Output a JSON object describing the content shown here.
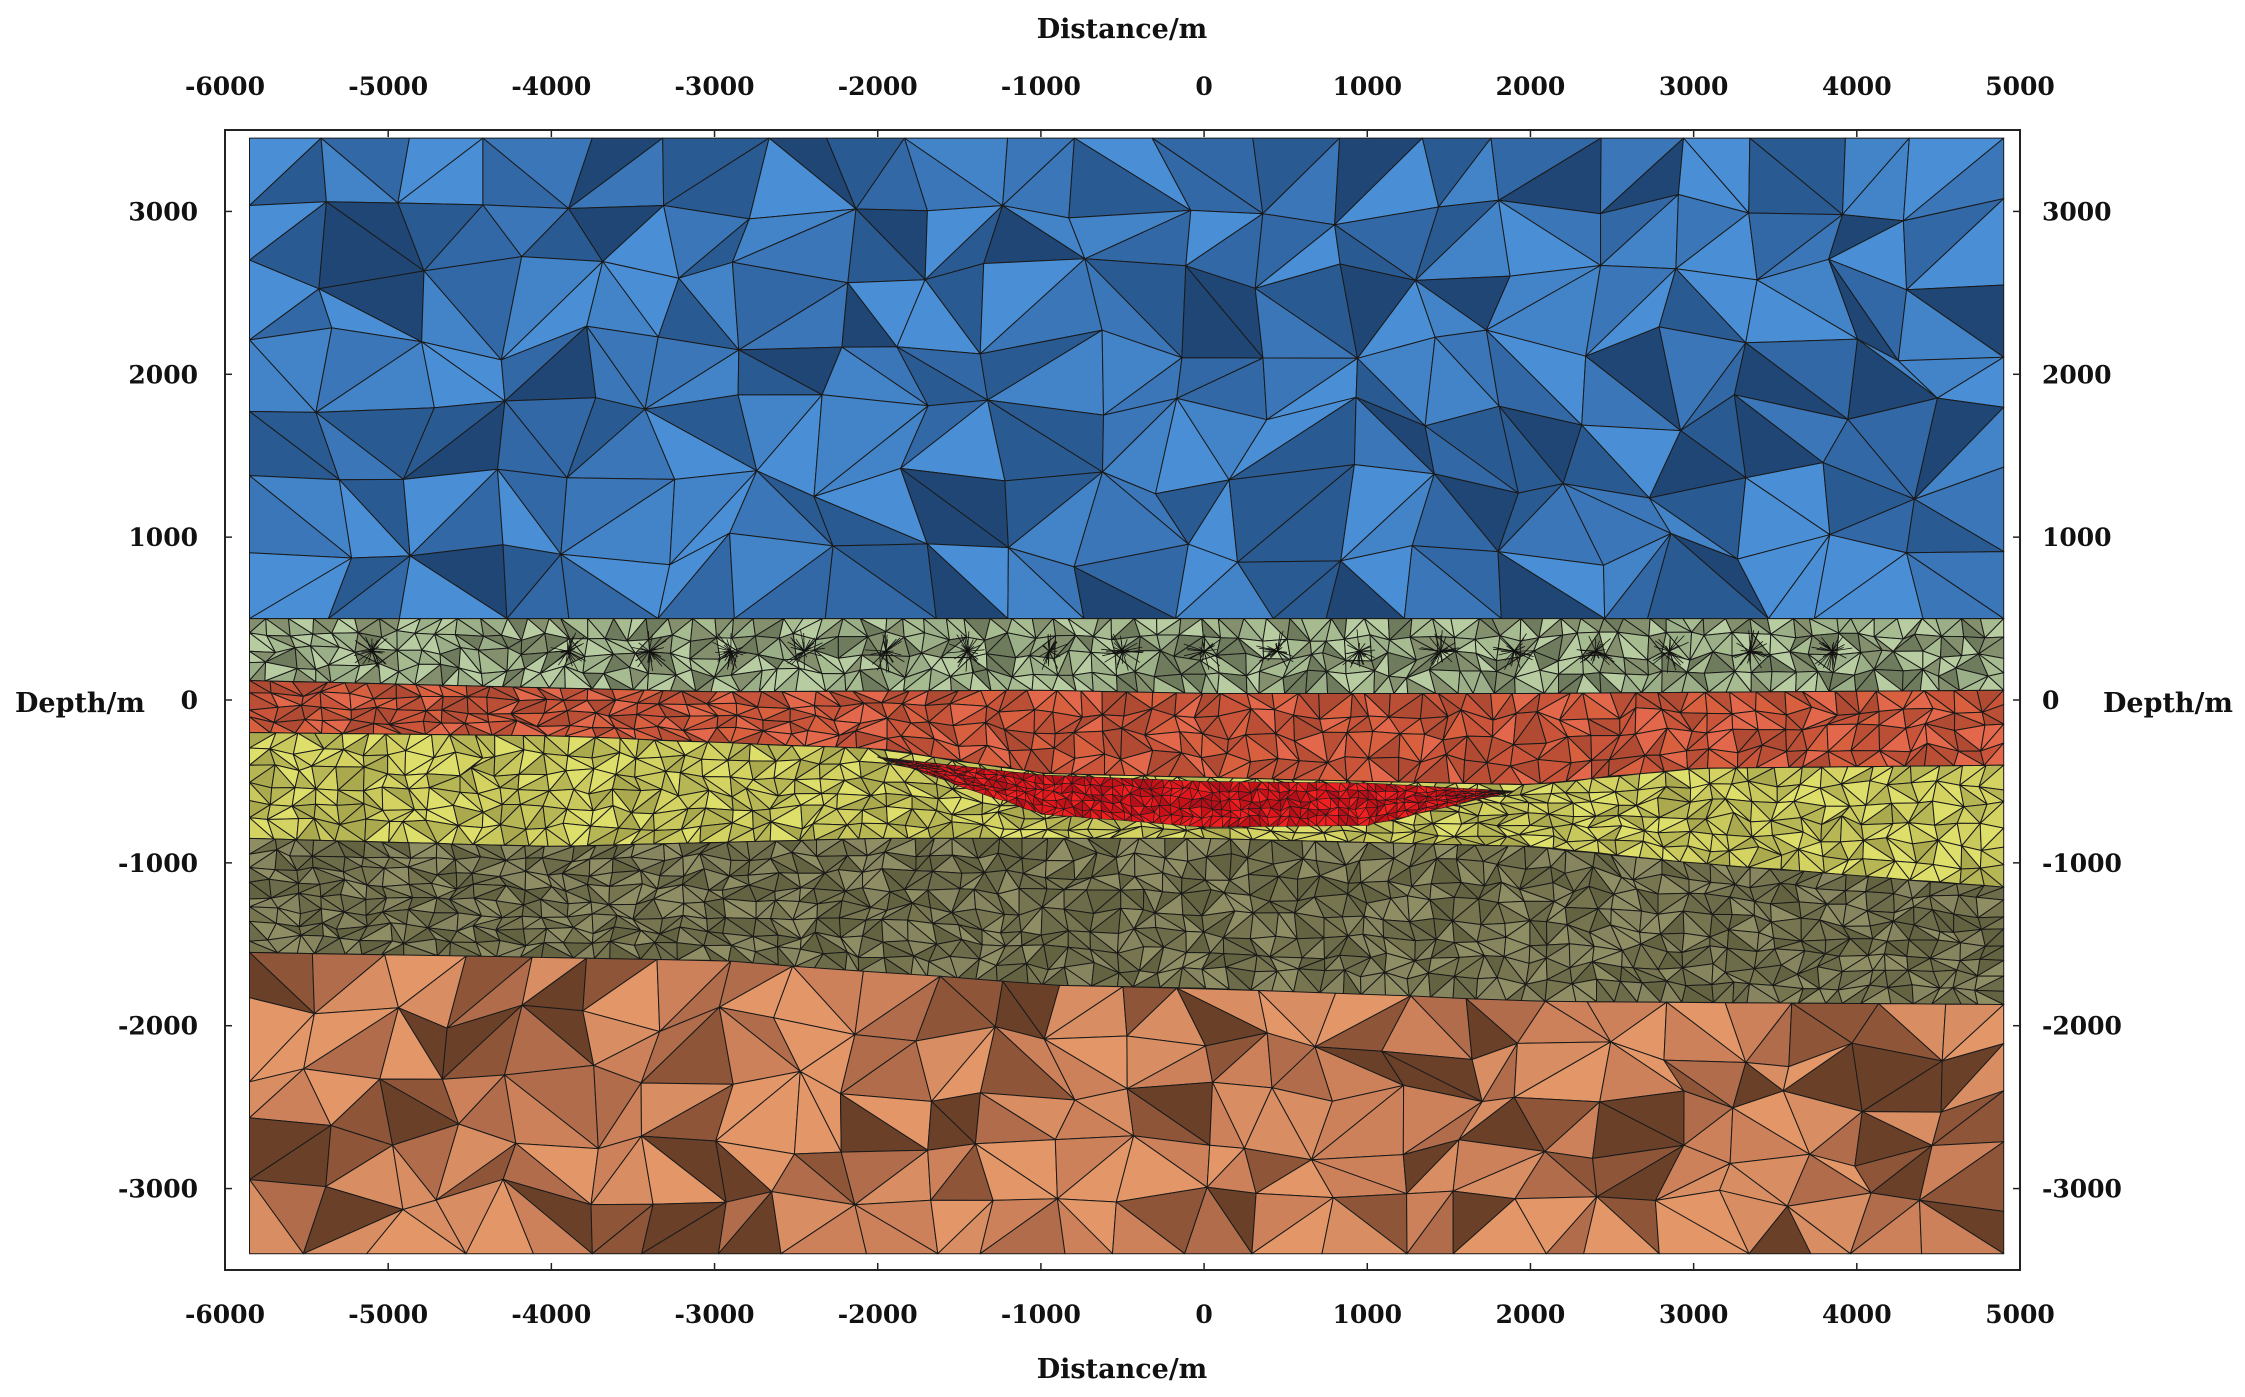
{
  "chart_data": {
    "type": "mesh",
    "xlabel": "Distance/m",
    "ylabel": "Depth/m",
    "xlim": [
      -6000,
      5000
    ],
    "ylim": [
      -3500,
      3500
    ],
    "model_bounds": {
      "x": [
        -5850,
        4900
      ],
      "y": [
        -3400,
        3450
      ]
    },
    "xticks": [
      -6000,
      -5000,
      -4000,
      -3000,
      -2000,
      -1000,
      0,
      1000,
      2000,
      3000,
      4000,
      5000
    ],
    "yticks": [
      -3000,
      -2000,
      -1000,
      0,
      1000,
      2000,
      3000
    ],
    "layers": [
      {
        "id": "air",
        "color": "#3d7bbd",
        "palette": [
          "#2a5a92",
          "#3a76b8",
          "#4a8fd6",
          "#1f4674",
          "#3268a6",
          "#4383c7"
        ],
        "mesh_size": 520,
        "top": [
          [
            -5850,
            3450
          ],
          [
            4900,
            3450
          ]
        ],
        "bottom": [
          [
            -5850,
            500
          ],
          [
            4900,
            500
          ]
        ]
      },
      {
        "id": "overburden",
        "color": "#9aae87",
        "palette": [
          "#b8cca2",
          "#9aae87",
          "#6f7b5d",
          "#a6bb90",
          "#838f6d"
        ],
        "mesh_size": 130,
        "top": [
          [
            -5850,
            500
          ],
          [
            4900,
            500
          ]
        ],
        "bottom": [
          [
            -5850,
            120
          ],
          [
            -3000,
            50
          ],
          [
            -1000,
            60
          ],
          [
            0,
            40
          ],
          [
            2000,
            40
          ],
          [
            4900,
            60
          ]
        ]
      },
      {
        "id": "sediment-red",
        "color": "#cf5a3b",
        "palette": [
          "#e3674a",
          "#c9543a",
          "#b04a32",
          "#d8603f",
          "#bb4f35"
        ],
        "mesh_size": 150,
        "top": [
          [
            -5850,
            120
          ],
          [
            -3000,
            50
          ],
          [
            -1000,
            60
          ],
          [
            0,
            40
          ],
          [
            2000,
            40
          ],
          [
            4900,
            60
          ]
        ],
        "bottom": [
          [
            -5850,
            -200
          ],
          [
            -4000,
            -220
          ],
          [
            -2000,
            -300
          ],
          [
            -1000,
            -450
          ],
          [
            1000,
            -500
          ],
          [
            2000,
            -520
          ],
          [
            3000,
            -420
          ],
          [
            4900,
            -400
          ]
        ]
      },
      {
        "id": "sand-yellow",
        "color": "#c4c35a",
        "palette": [
          "#dede6a",
          "#c9c85c",
          "#aaa94e",
          "#d4d362",
          "#b7b654"
        ],
        "mesh_size": 140,
        "top": [
          [
            -5850,
            -200
          ],
          [
            -4000,
            -220
          ],
          [
            -2000,
            -300
          ],
          [
            -1000,
            -450
          ],
          [
            1000,
            -500
          ],
          [
            2000,
            -520
          ],
          [
            3000,
            -420
          ],
          [
            4900,
            -400
          ]
        ],
        "bottom": [
          [
            -5850,
            -850
          ],
          [
            -4000,
            -900
          ],
          [
            -2000,
            -850
          ],
          [
            0,
            -850
          ],
          [
            2000,
            -900
          ],
          [
            3000,
            -1000
          ],
          [
            4900,
            -1150
          ]
        ]
      },
      {
        "id": "shale-olive",
        "color": "#7d7d58",
        "palette": [
          "#8e8d63",
          "#76754f",
          "#636342",
          "#868560",
          "#6d6c4a"
        ],
        "mesh_size": 140,
        "top": [
          [
            -5850,
            -850
          ],
          [
            -4000,
            -900
          ],
          [
            -2000,
            -850
          ],
          [
            0,
            -850
          ],
          [
            2000,
            -900
          ],
          [
            3000,
            -1000
          ],
          [
            4900,
            -1150
          ]
        ],
        "bottom": [
          [
            -5850,
            -1550
          ],
          [
            -3000,
            -1600
          ],
          [
            -1000,
            -1750
          ],
          [
            0,
            -1770
          ],
          [
            2000,
            -1850
          ],
          [
            4900,
            -1870
          ]
        ]
      },
      {
        "id": "basement",
        "color": "#c47a56",
        "palette": [
          "#e39668",
          "#cd815a",
          "#b06c4b",
          "#8e5538",
          "#d88d62",
          "#6b4029"
        ],
        "mesh_size": 420,
        "top": [
          [
            -5850,
            -1550
          ],
          [
            -3000,
            -1600
          ],
          [
            -1000,
            -1750
          ],
          [
            0,
            -1770
          ],
          [
            2000,
            -1850
          ],
          [
            4900,
            -1870
          ]
        ],
        "bottom": [
          [
            -5850,
            -3400
          ],
          [
            4900,
            -3400
          ]
        ]
      }
    ],
    "anomaly": {
      "id": "reservoir",
      "color": "#d0161a",
      "palette": [
        "#e0161c",
        "#c41217",
        "#f02020",
        "#b5101a"
      ],
      "mesh_size": 60,
      "top": [
        [
          -2000,
          -350
        ],
        [
          -1000,
          -460
        ],
        [
          0,
          -500
        ],
        [
          1000,
          -510
        ],
        [
          1900,
          -560
        ]
      ],
      "bottom": [
        [
          -2000,
          -350
        ],
        [
          -1000,
          -700
        ],
        [
          0,
          -780
        ],
        [
          1000,
          -770
        ],
        [
          1900,
          -560
        ]
      ]
    },
    "receivers": {
      "depth": 300,
      "x": [
        -5100,
        -3900,
        -3400,
        -2900,
        -2450,
        -1950,
        -1450,
        -950,
        -500,
        0,
        450,
        950,
        1450,
        1900,
        2400,
        2850,
        3350,
        3850
      ]
    }
  }
}
